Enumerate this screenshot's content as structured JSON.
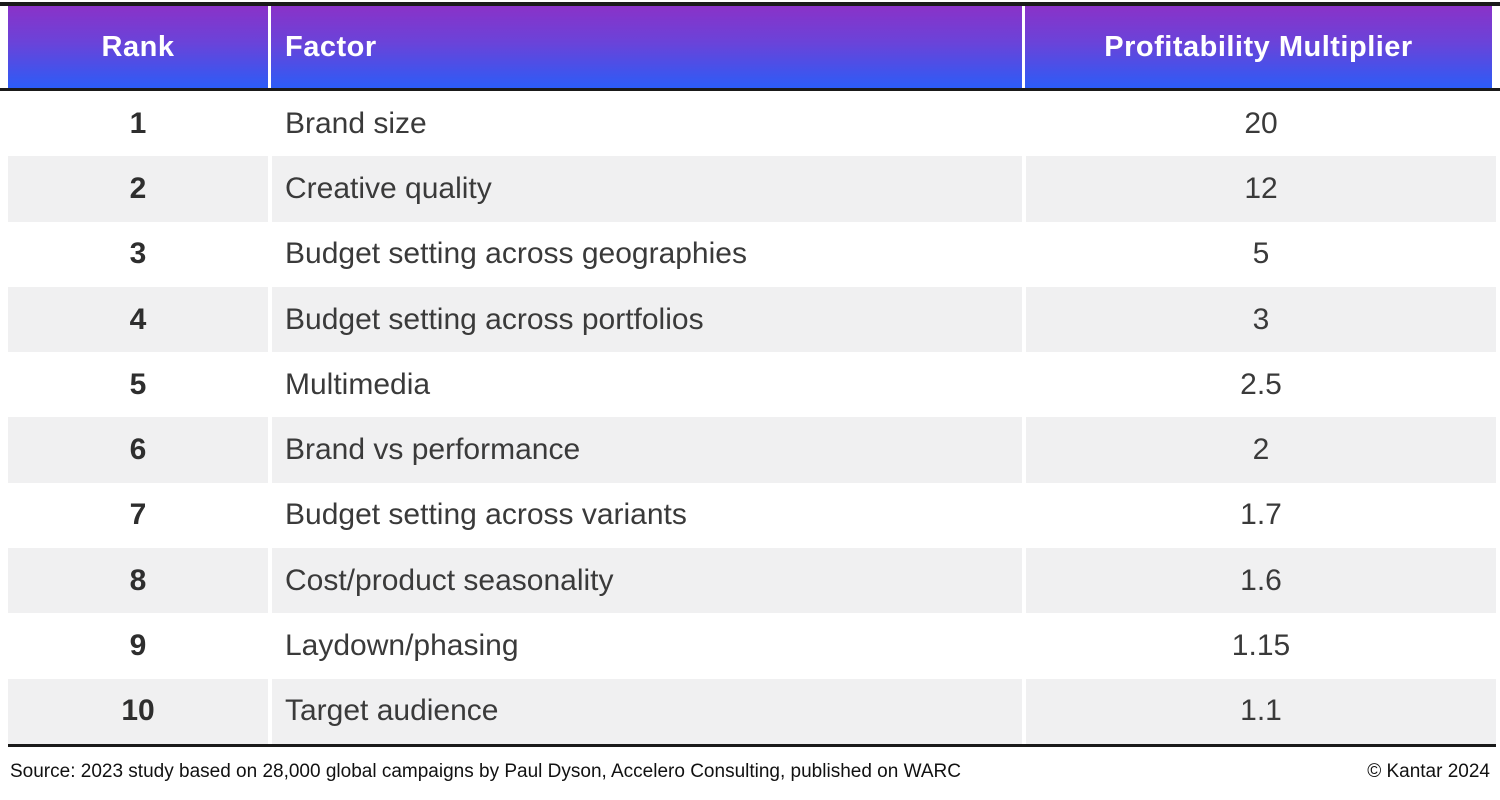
{
  "table": {
    "columns": [
      {
        "label": "Rank"
      },
      {
        "label": "Factor"
      },
      {
        "label": "Profitability Multiplier"
      }
    ],
    "rows": [
      {
        "rank": "1",
        "factor": "Brand size",
        "multiplier": "20"
      },
      {
        "rank": "2",
        "factor": "Creative quality",
        "multiplier": "12"
      },
      {
        "rank": "3",
        "factor": "Budget setting across geographies",
        "multiplier": "5"
      },
      {
        "rank": "4",
        "factor": "Budget setting across portfolios",
        "multiplier": "3"
      },
      {
        "rank": "5",
        "factor": "Multimedia",
        "multiplier": "2.5"
      },
      {
        "rank": "6",
        "factor": "Brand vs performance",
        "multiplier": "2"
      },
      {
        "rank": "7",
        "factor": "Budget setting across variants",
        "multiplier": "1.7"
      },
      {
        "rank": "8",
        "factor": "Cost/product seasonality",
        "multiplier": "1.6"
      },
      {
        "rank": "9",
        "factor": "Laydown/phasing",
        "multiplier": "1.15"
      },
      {
        "rank": "10",
        "factor": "Target audience",
        "multiplier": "1.1"
      }
    ]
  },
  "footer": {
    "source": "Source: 2023 study based on 28,000 global campaigns by Paul Dyson, Accelero Consulting, published on WARC",
    "copyright": "© Kantar 2024"
  },
  "colors": {
    "header_gradient_top": "#8a32c8",
    "header_gradient_bottom": "#2c5cf6",
    "header_text": "#ffffff",
    "row_alt_background": "#f0f0f1",
    "rule_dark": "#1a1a1a",
    "body_text": "#3a3a3a"
  }
}
